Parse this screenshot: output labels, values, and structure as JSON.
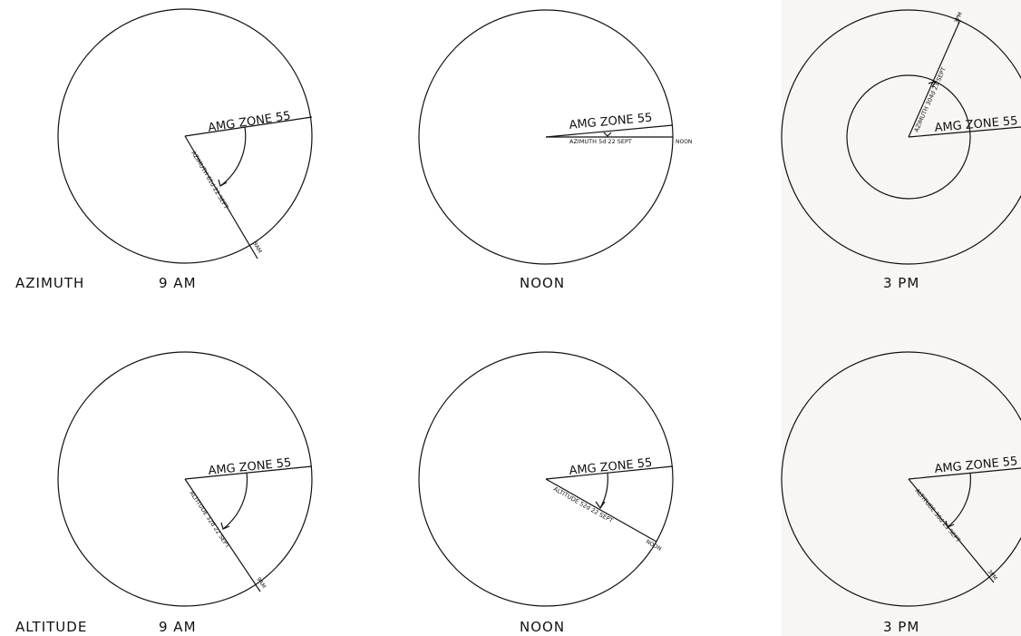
{
  "row_labels": {
    "azimuth": "AZIMUTH",
    "altitude": "ALTITUDE"
  },
  "zone_label": "AMG ZONE 55",
  "panels": {
    "az_9am": {
      "time": "9 AM",
      "annotation": "AZIMUTH 61d 22 SEPT",
      "time_tag": "9AM"
    },
    "az_noon": {
      "time": "NOON",
      "annotation": "AZIMUTH 5d 22 SEPT",
      "time_tag": "NOON"
    },
    "az_3pm": {
      "time": "3 PM",
      "annotation": "AZIMUTH 304d 23 SEPT",
      "time_tag": "3PM"
    },
    "alt_9am": {
      "time": "9 AM",
      "annotation": "ALTITUDE 32d 22 SEPT",
      "time_tag": "9AM"
    },
    "alt_noon": {
      "time": "NOON",
      "annotation": "ALTITUDE 52d 22 SEPT",
      "time_tag": "NOON"
    },
    "alt_3pm": {
      "time": "3 PM",
      "annotation": "ALTITUDE 36d 23 SEPT",
      "time_tag": "3PM"
    }
  }
}
